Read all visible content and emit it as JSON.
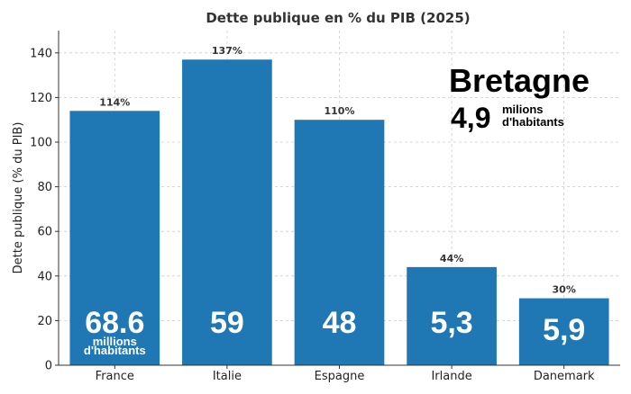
{
  "chart_data": {
    "type": "bar",
    "title": "Dette publique en % du PIB (2025)",
    "xlabel": "",
    "ylabel": "Dette publique (% du PIB)",
    "ylim": [
      0,
      150
    ],
    "yticks": [
      0,
      20,
      40,
      60,
      80,
      100,
      120,
      140
    ],
    "grid": true,
    "categories": [
      "France",
      "Italie",
      "Espagne",
      "Irlande",
      "Danemark"
    ],
    "values": [
      114,
      137,
      110,
      44,
      30
    ],
    "value_labels": [
      "114%",
      "137%",
      "110%",
      "44%",
      "30%"
    ],
    "color": "#1f77b4",
    "population_labels": [
      {
        "value": "68.6",
        "unit": [
          "millions",
          "d'habitants"
        ]
      },
      {
        "value": "59",
        "unit": []
      },
      {
        "value": "48",
        "unit": []
      },
      {
        "value": "5,3",
        "unit": []
      },
      {
        "value": "5,9",
        "unit": []
      }
    ],
    "annotation": {
      "name": "Bretagne",
      "value": "4,9",
      "unit": [
        "milions",
        "d'habitants"
      ]
    }
  }
}
